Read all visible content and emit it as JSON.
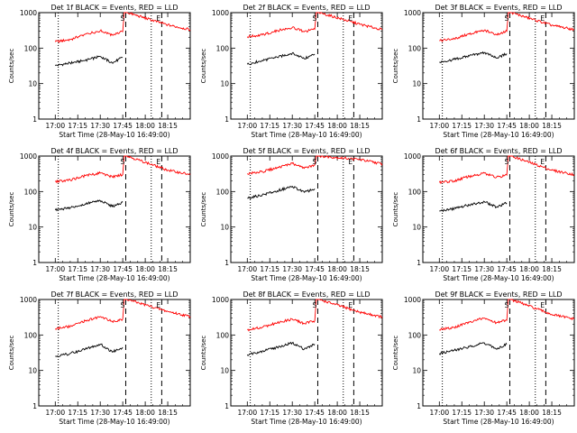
{
  "figure": {
    "rows": 3,
    "cols": 3,
    "ylabel": "Counts/sec",
    "xlabel": "Start Time (28-May-10 16:49:00)",
    "y_ticks": [
      "1",
      "10",
      "100",
      "1000"
    ],
    "x_ticks": [
      "17:00",
      "17:15",
      "17:30",
      "17:45",
      "18:00",
      "18:15"
    ],
    "colors": {
      "events": "#000000",
      "lld": "#ff0000"
    }
  },
  "chart_data": [
    {
      "type": "line",
      "title": "Det 1f BLACK = Events, RED = LLD",
      "xlim": [
        "16:49",
        "18:30"
      ],
      "ylim": [
        1,
        1000
      ],
      "yscale": "log",
      "series": [
        {
          "name": "Events",
          "x": [
            "17:00",
            "17:10",
            "17:20",
            "17:30",
            "17:38",
            "17:45"
          ],
          "values": [
            32,
            38,
            45,
            58,
            38,
            55
          ]
        },
        {
          "name": "LLD",
          "x": [
            "17:00",
            "17:10",
            "17:20",
            "17:30",
            "17:38",
            "17:45",
            "17:46",
            "17:48",
            "18:15",
            "18:30"
          ],
          "values": [
            150,
            175,
            245,
            310,
            235,
            290,
            1000,
            1000,
            450,
            330
          ]
        }
      ],
      "annotations": [
        "S",
        "E"
      ],
      "dotted_lines": [
        "17:02",
        "18:04"
      ],
      "dashed_lines": [
        "17:47",
        "18:11"
      ]
    },
    {
      "type": "line",
      "title": "Det 2f BLACK = Events, RED = LLD",
      "xlim": [
        "16:49",
        "18:30"
      ],
      "ylim": [
        1,
        1000
      ],
      "yscale": "log",
      "series": [
        {
          "name": "Events",
          "x": [
            "17:00",
            "17:10",
            "17:20",
            "17:30",
            "17:38",
            "17:45"
          ],
          "values": [
            35,
            45,
            55,
            72,
            50,
            68
          ]
        },
        {
          "name": "LLD",
          "x": [
            "17:00",
            "17:10",
            "17:20",
            "17:30",
            "17:38",
            "17:45",
            "17:46",
            "17:48",
            "18:15",
            "18:30"
          ],
          "values": [
            210,
            235,
            310,
            380,
            290,
            340,
            1000,
            1000,
            470,
            330
          ]
        }
      ],
      "annotations": [
        "S",
        "E"
      ],
      "dotted_lines": [
        "17:02",
        "18:04"
      ],
      "dashed_lines": [
        "17:47",
        "18:11"
      ]
    },
    {
      "type": "line",
      "title": "Det 3f BLACK = Events, RED = LLD",
      "xlim": [
        "16:49",
        "18:30"
      ],
      "ylim": [
        1,
        1000
      ],
      "yscale": "log",
      "series": [
        {
          "name": "Events",
          "x": [
            "17:00",
            "17:10",
            "17:20",
            "17:30",
            "17:38",
            "17:45"
          ],
          "values": [
            40,
            48,
            60,
            75,
            52,
            70
          ]
        },
        {
          "name": "LLD",
          "x": [
            "17:00",
            "17:10",
            "17:20",
            "17:30",
            "17:38",
            "17:45",
            "17:46",
            "17:48",
            "18:15",
            "18:30"
          ],
          "values": [
            160,
            185,
            250,
            320,
            240,
            300,
            1000,
            1000,
            440,
            330
          ]
        }
      ],
      "annotations": [
        "S",
        "E"
      ],
      "dotted_lines": [
        "17:02",
        "18:04"
      ],
      "dashed_lines": [
        "17:47",
        "18:11"
      ]
    },
    {
      "type": "line",
      "title": "Det 4f BLACK = Events, RED = LLD",
      "xlim": [
        "16:49",
        "18:30"
      ],
      "ylim": [
        1,
        1000
      ],
      "yscale": "log",
      "series": [
        {
          "name": "Events",
          "x": [
            "17:00",
            "17:10",
            "17:20",
            "17:30",
            "17:38",
            "17:45"
          ],
          "values": [
            30,
            35,
            45,
            55,
            38,
            50
          ]
        },
        {
          "name": "LLD",
          "x": [
            "17:00",
            "17:10",
            "17:20",
            "17:30",
            "17:38",
            "17:45",
            "17:46",
            "17:48",
            "18:15",
            "18:30"
          ],
          "values": [
            190,
            210,
            280,
            330,
            260,
            300,
            1000,
            1000,
            400,
            300
          ]
        }
      ],
      "annotations": [
        "S",
        "E"
      ],
      "dotted_lines": [
        "17:02",
        "18:04"
      ],
      "dashed_lines": [
        "17:47",
        "18:11"
      ]
    },
    {
      "type": "line",
      "title": "Det 5f BLACK = Events, RED = LLD",
      "xlim": [
        "16:49",
        "18:30"
      ],
      "ylim": [
        1,
        1000
      ],
      "yscale": "log",
      "series": [
        {
          "name": "Events",
          "x": [
            "17:00",
            "17:10",
            "17:20",
            "17:30",
            "17:38",
            "17:45"
          ],
          "values": [
            65,
            80,
            105,
            140,
            95,
            120
          ]
        },
        {
          "name": "LLD",
          "x": [
            "17:00",
            "17:10",
            "17:20",
            "17:30",
            "17:38",
            "17:45",
            "17:46",
            "17:48",
            "18:15",
            "18:30"
          ],
          "values": [
            320,
            360,
            470,
            620,
            450,
            560,
            1000,
            1000,
            800,
            600
          ]
        }
      ],
      "annotations": [
        "S",
        "E"
      ],
      "dotted_lines": [
        "17:02",
        "18:04"
      ],
      "dashed_lines": [
        "17:47",
        "18:11"
      ]
    },
    {
      "type": "line",
      "title": "Det 6f BLACK = Events, RED = LLD",
      "xlim": [
        "16:49",
        "18:30"
      ],
      "ylim": [
        1,
        1000
      ],
      "yscale": "log",
      "series": [
        {
          "name": "Events",
          "x": [
            "17:00",
            "17:10",
            "17:20",
            "17:30",
            "17:38",
            "17:45"
          ],
          "values": [
            28,
            33,
            42,
            52,
            36,
            48
          ]
        },
        {
          "name": "LLD",
          "x": [
            "17:00",
            "17:10",
            "17:20",
            "17:30",
            "17:38",
            "17:45",
            "17:46",
            "17:48",
            "18:15",
            "18:30"
          ],
          "values": [
            180,
            200,
            270,
            330,
            250,
            290,
            1000,
            1000,
            400,
            300
          ]
        }
      ],
      "annotations": [
        "S",
        "E"
      ],
      "dotted_lines": [
        "17:02",
        "18:04"
      ],
      "dashed_lines": [
        "17:47",
        "18:11"
      ]
    },
    {
      "type": "line",
      "title": "Det 7f BLACK = Events, RED = LLD",
      "xlim": [
        "16:49",
        "18:30"
      ],
      "ylim": [
        1,
        1000
      ],
      "yscale": "log",
      "series": [
        {
          "name": "Events",
          "x": [
            "17:00",
            "17:10",
            "17:20",
            "17:30",
            "17:38",
            "17:45"
          ],
          "values": [
            25,
            30,
            40,
            55,
            33,
            45
          ]
        },
        {
          "name": "LLD",
          "x": [
            "17:00",
            "17:10",
            "17:20",
            "17:30",
            "17:38",
            "17:45",
            "17:46",
            "17:48",
            "18:15",
            "18:30"
          ],
          "values": [
            150,
            175,
            250,
            330,
            240,
            280,
            1000,
            1000,
            460,
            330
          ]
        }
      ],
      "annotations": [
        "S",
        "E"
      ],
      "dotted_lines": [
        "17:02",
        "18:04"
      ],
      "dashed_lines": [
        "17:47",
        "18:11"
      ]
    },
    {
      "type": "line",
      "title": "Det 8f BLACK = Events, RED = LLD",
      "xlim": [
        "16:49",
        "18:30"
      ],
      "ylim": [
        1,
        1000
      ],
      "yscale": "log",
      "series": [
        {
          "name": "Events",
          "x": [
            "17:00",
            "17:10",
            "17:20",
            "17:30",
            "17:38",
            "17:45"
          ],
          "values": [
            28,
            35,
            45,
            60,
            40,
            55
          ]
        },
        {
          "name": "LLD",
          "x": [
            "17:00",
            "17:10",
            "17:20",
            "17:30",
            "17:38",
            "17:45",
            "17:46",
            "17:48",
            "18:15",
            "18:30"
          ],
          "values": [
            140,
            165,
            220,
            280,
            210,
            250,
            1000,
            1000,
            440,
            320
          ]
        }
      ],
      "annotations": [
        "S",
        "E"
      ],
      "dotted_lines": [
        "17:02",
        "18:04"
      ],
      "dashed_lines": [
        "17:47",
        "18:11"
      ]
    },
    {
      "type": "line",
      "title": "Det 9f BLACK = Events, RED = LLD",
      "xlim": [
        "16:49",
        "18:30"
      ],
      "ylim": [
        1,
        1000
      ],
      "yscale": "log",
      "series": [
        {
          "name": "Events",
          "x": [
            "17:00",
            "17:10",
            "17:20",
            "17:30",
            "17:38",
            "17:45"
          ],
          "values": [
            30,
            37,
            47,
            60,
            40,
            55
          ]
        },
        {
          "name": "LLD",
          "x": [
            "17:00",
            "17:10",
            "17:20",
            "17:30",
            "17:38",
            "17:45",
            "17:46",
            "17:48",
            "18:15",
            "18:30"
          ],
          "values": [
            140,
            165,
            230,
            300,
            220,
            260,
            1000,
            1000,
            380,
            280
          ]
        }
      ],
      "annotations": [
        "S",
        "E"
      ],
      "dotted_lines": [
        "17:02",
        "18:04"
      ],
      "dashed_lines": [
        "17:47",
        "18:11"
      ]
    }
  ]
}
